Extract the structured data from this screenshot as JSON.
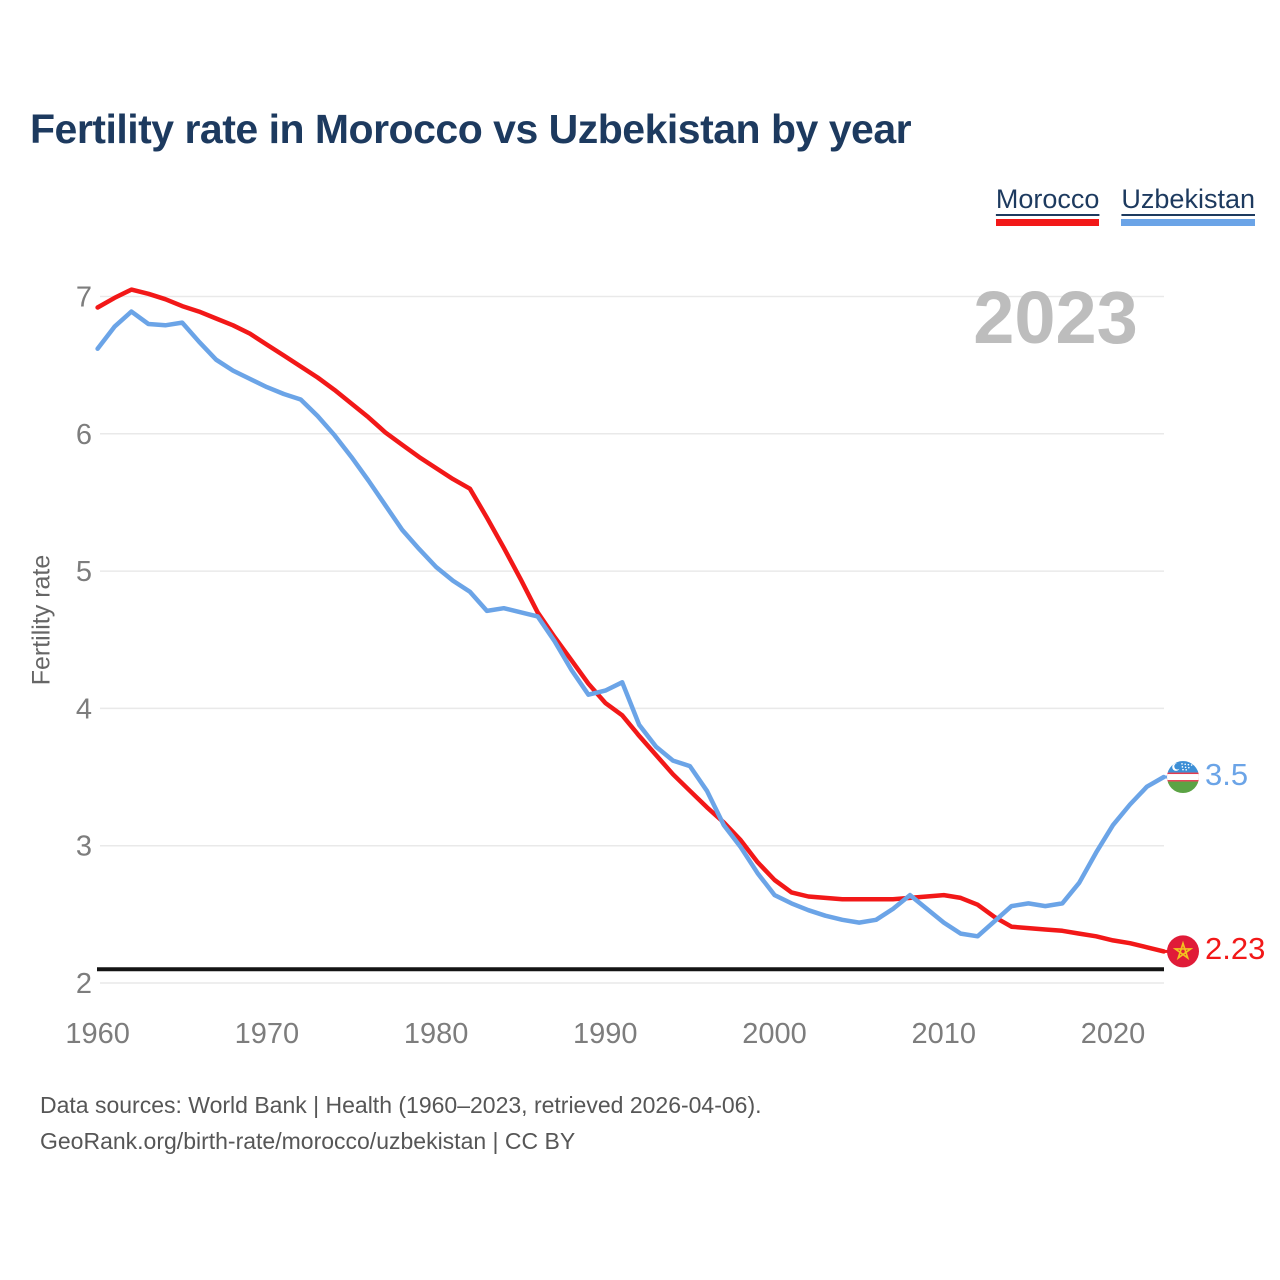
{
  "header": {
    "title": "Fertility rate in Morocco vs Uzbekistan by year"
  },
  "legend": [
    {
      "label": "Morocco",
      "color": "#f21818"
    },
    {
      "label": "Uzbekistan",
      "color": "#6ba4e7"
    }
  ],
  "watermark": "2023",
  "chart_data": {
    "type": "line",
    "title": "Fertility rate in Morocco vs Uzbekistan by year",
    "xlabel": "",
    "ylabel": "Fertility rate",
    "xlim": [
      1960,
      2023
    ],
    "ylim": [
      2,
      7.2
    ],
    "x_ticks": [
      1960,
      1970,
      1980,
      1990,
      2000,
      2010,
      2020
    ],
    "y_ticks": [
      2,
      3,
      4,
      5,
      6,
      7
    ],
    "grid": true,
    "legend_position": "top-right",
    "reference_line": {
      "value": 2.1,
      "color": "#141414",
      "meaning": "replacement level"
    },
    "x": [
      1960,
      1961,
      1962,
      1963,
      1964,
      1965,
      1966,
      1967,
      1968,
      1969,
      1970,
      1971,
      1972,
      1973,
      1974,
      1975,
      1976,
      1977,
      1978,
      1979,
      1980,
      1981,
      1982,
      1983,
      1984,
      1985,
      1986,
      1987,
      1988,
      1989,
      1990,
      1991,
      1992,
      1993,
      1994,
      1995,
      1996,
      1997,
      1998,
      1999,
      2000,
      2001,
      2002,
      2003,
      2004,
      2005,
      2006,
      2007,
      2008,
      2009,
      2010,
      2011,
      2012,
      2013,
      2014,
      2015,
      2016,
      2017,
      2018,
      2019,
      2020,
      2021,
      2022,
      2023
    ],
    "series": [
      {
        "name": "Morocco",
        "color": "#f21818",
        "end_value_label": "2.23",
        "flag_icon": "morocco-flag-icon",
        "values": [
          6.92,
          6.99,
          7.05,
          7.02,
          6.98,
          6.93,
          6.89,
          6.84,
          6.79,
          6.73,
          6.65,
          6.57,
          6.49,
          6.41,
          6.32,
          6.22,
          6.12,
          6.01,
          5.92,
          5.83,
          5.75,
          5.67,
          5.6,
          5.39,
          5.17,
          4.94,
          4.7,
          4.52,
          4.35,
          4.18,
          4.04,
          3.95,
          3.8,
          3.66,
          3.52,
          3.4,
          3.28,
          3.17,
          3.04,
          2.88,
          2.75,
          2.66,
          2.63,
          2.62,
          2.61,
          2.61,
          2.61,
          2.61,
          2.62,
          2.63,
          2.64,
          2.62,
          2.57,
          2.48,
          2.41,
          2.4,
          2.39,
          2.38,
          2.36,
          2.34,
          2.31,
          2.29,
          2.26,
          2.23
        ]
      },
      {
        "name": "Uzbekistan",
        "color": "#6ba4e7",
        "end_value_label": "3.5",
        "flag_icon": "uzbekistan-flag-icon",
        "values": [
          6.62,
          6.78,
          6.89,
          6.8,
          6.79,
          6.81,
          6.67,
          6.54,
          6.46,
          6.4,
          6.34,
          6.29,
          6.25,
          6.13,
          5.99,
          5.83,
          5.66,
          5.48,
          5.3,
          5.16,
          5.03,
          4.93,
          4.85,
          4.71,
          4.73,
          4.7,
          4.67,
          4.49,
          4.28,
          4.1,
          4.13,
          4.19,
          3.88,
          3.72,
          3.62,
          3.58,
          3.4,
          3.15,
          2.99,
          2.8,
          2.64,
          2.58,
          2.53,
          2.49,
          2.46,
          2.44,
          2.46,
          2.54,
          2.64,
          2.54,
          2.44,
          2.36,
          2.34,
          2.45,
          2.56,
          2.58,
          2.56,
          2.58,
          2.73,
          2.95,
          3.15,
          3.3,
          3.43,
          3.5
        ]
      }
    ]
  },
  "flags": {
    "uzbekistan": {
      "blue": "#3d8fd6",
      "white": "#ffffff",
      "red": "#e23b4e",
      "green": "#5ba344"
    },
    "morocco": {
      "red": "#e01b38",
      "star": "#f2c21f"
    }
  },
  "colors": {
    "grid": "#e9e9e9",
    "tick_text": "#7d7d7d",
    "watermark": "#bdbdbd",
    "title_text": "#1d3a5f",
    "footer_text": "#565656"
  },
  "footer": {
    "line1": "Data sources: World Bank | Health (1960–2023, retrieved 2026-04-06).",
    "line2": "GeoRank.org/birth-rate/morocco/uzbekistan | CC BY"
  }
}
